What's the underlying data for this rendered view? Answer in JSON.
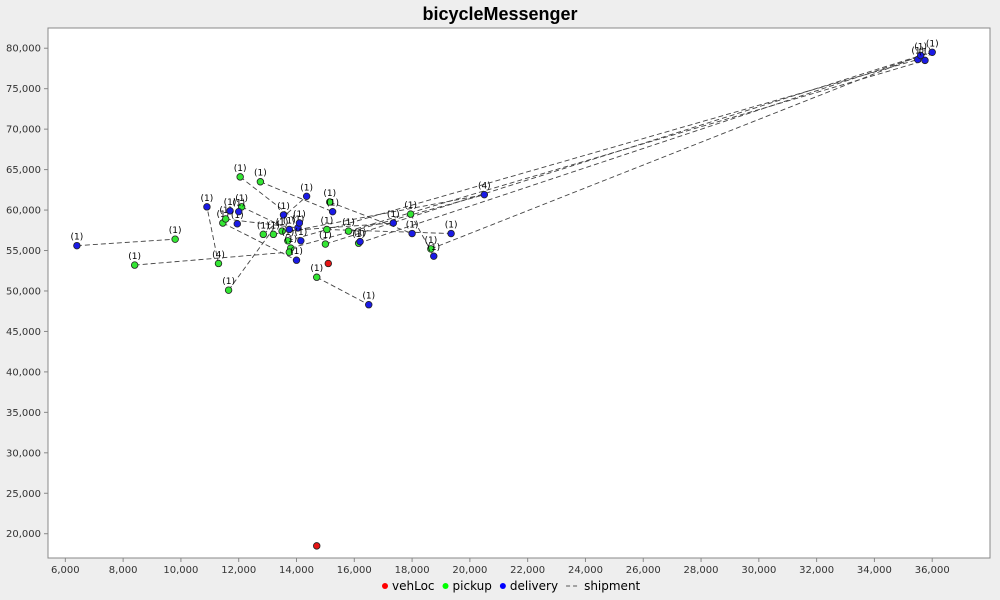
{
  "chart_data": {
    "type": "scatter",
    "title": "bicycleMessenger",
    "xlabel": "",
    "ylabel": "",
    "xlim": [
      5400,
      38000
    ],
    "ylim": [
      17000,
      82500
    ],
    "x_ticks": [
      "6,000",
      "8,000",
      "10,000",
      "12,000",
      "14,000",
      "16,000",
      "18,000",
      "20,000",
      "22,000",
      "24,000",
      "26,000",
      "28,000",
      "30,000",
      "32,000",
      "34,000",
      "36,000"
    ],
    "x_tick_values": [
      6000,
      8000,
      10000,
      12000,
      14000,
      16000,
      18000,
      20000,
      22000,
      24000,
      26000,
      28000,
      30000,
      32000,
      34000,
      36000
    ],
    "y_ticks": [
      "20,000",
      "25,000",
      "30,000",
      "35,000",
      "40,000",
      "45,000",
      "50,000",
      "55,000",
      "60,000",
      "65,000",
      "70,000",
      "75,000",
      "80,000"
    ],
    "y_tick_values": [
      20000,
      25000,
      30000,
      35000,
      40000,
      45000,
      50000,
      55000,
      60000,
      65000,
      70000,
      75000,
      80000
    ],
    "grid": false,
    "legend_position": "bottom",
    "legend": [
      {
        "name": "vehLoc",
        "color": "#ff0000",
        "kind": "marker"
      },
      {
        "name": "pickup",
        "color": "#00ff00",
        "kind": "marker"
      },
      {
        "name": "delivery",
        "color": "#0000ff",
        "kind": "marker"
      },
      {
        "name": "shipment",
        "color": "#555555",
        "kind": "dash"
      }
    ],
    "series": [
      {
        "name": "vehLoc",
        "color": "#e61414",
        "points": [
          {
            "x": 14700,
            "y": 18500,
            "label": ""
          },
          {
            "x": 15100,
            "y": 53400,
            "label": ""
          }
        ]
      },
      {
        "name": "pickup",
        "color": "#33e633",
        "points": [
          {
            "x": 9800,
            "y": 56400,
            "label": "(1)"
          },
          {
            "x": 8400,
            "y": 53200,
            "label": "(1)"
          },
          {
            "x": 11300,
            "y": 53400,
            "label": "(4)"
          },
          {
            "x": 11650,
            "y": 50100,
            "label": "(1)"
          },
          {
            "x": 12050,
            "y": 64100,
            "label": "(1)"
          },
          {
            "x": 12750,
            "y": 63500,
            "label": "(1)"
          },
          {
            "x": 12100,
            "y": 60400,
            "label": "(1)"
          },
          {
            "x": 11450,
            "y": 58400,
            "label": "(1)"
          },
          {
            "x": 11550,
            "y": 58900,
            "label": "(1)"
          },
          {
            "x": 12850,
            "y": 57000,
            "label": "(1)"
          },
          {
            "x": 13200,
            "y": 57000,
            "label": "(1)"
          },
          {
            "x": 13500,
            "y": 57400,
            "label": "(1)"
          },
          {
            "x": 13700,
            "y": 56200,
            "label": "(1)"
          },
          {
            "x": 13800,
            "y": 55300,
            "label": "(1)"
          },
          {
            "x": 13750,
            "y": 54800,
            "label": ""
          },
          {
            "x": 15000,
            "y": 55800,
            "label": "(1)"
          },
          {
            "x": 15050,
            "y": 57600,
            "label": "(1)"
          },
          {
            "x": 15150,
            "y": 61000,
            "label": "(1)"
          },
          {
            "x": 15800,
            "y": 57400,
            "label": "(1)"
          },
          {
            "x": 16150,
            "y": 55900,
            "label": "(1)"
          },
          {
            "x": 17950,
            "y": 59500,
            "label": "(1)"
          },
          {
            "x": 18650,
            "y": 55200,
            "label": "(1)"
          },
          {
            "x": 14700,
            "y": 51700,
            "label": "(1)"
          }
        ]
      },
      {
        "name": "delivery",
        "color": "#1a1ae6",
        "points": [
          {
            "x": 6400,
            "y": 55600,
            "label": "(1)"
          },
          {
            "x": 10900,
            "y": 60400,
            "label": "(1)"
          },
          {
            "x": 11700,
            "y": 59900,
            "label": "(1)"
          },
          {
            "x": 11950,
            "y": 58300,
            "label": "(1)"
          },
          {
            "x": 12000,
            "y": 59800,
            "label": "(1)"
          },
          {
            "x": 13550,
            "y": 59400,
            "label": "(1)"
          },
          {
            "x": 13750,
            "y": 57600,
            "label": "(1)"
          },
          {
            "x": 14050,
            "y": 57800,
            "label": "(1)"
          },
          {
            "x": 14100,
            "y": 58400,
            "label": "(1)"
          },
          {
            "x": 14150,
            "y": 56200,
            "label": "(1)"
          },
          {
            "x": 14000,
            "y": 53800,
            "label": "(1)"
          },
          {
            "x": 14350,
            "y": 61700,
            "label": "(1)"
          },
          {
            "x": 15250,
            "y": 59800,
            "label": "(1)"
          },
          {
            "x": 16200,
            "y": 56100,
            "label": "(1)"
          },
          {
            "x": 16500,
            "y": 48300,
            "label": "(1)"
          },
          {
            "x": 17350,
            "y": 58400,
            "label": "(1)"
          },
          {
            "x": 18000,
            "y": 57100,
            "label": "(1)"
          },
          {
            "x": 18750,
            "y": 54300,
            "label": "(1)"
          },
          {
            "x": 19350,
            "y": 57100,
            "label": "(1)"
          },
          {
            "x": 20500,
            "y": 61900,
            "label": "(4)"
          },
          {
            "x": 35500,
            "y": 78600,
            "label": "(1)"
          },
          {
            "x": 35600,
            "y": 79100,
            "label": "(1)"
          },
          {
            "x": 35750,
            "y": 78500,
            "label": "(1)"
          },
          {
            "x": 36000,
            "y": 79500,
            "label": "(1)"
          }
        ]
      }
    ],
    "shipments": [
      [
        [
          6400,
          55600
        ],
        [
          9800,
          56400
        ]
      ],
      [
        [
          8400,
          53200
        ],
        [
          13750,
          54800
        ]
      ],
      [
        [
          11300,
          53400
        ],
        [
          10900,
          60400
        ]
      ],
      [
        [
          11650,
          50100
        ],
        [
          13550,
          59400
        ]
      ],
      [
        [
          12050,
          64100
        ],
        [
          14100,
          58400
        ]
      ],
      [
        [
          12750,
          63500
        ],
        [
          15250,
          59800
        ]
      ],
      [
        [
          12100,
          60400
        ],
        [
          13750,
          57600
        ]
      ],
      [
        [
          11450,
          58400
        ],
        [
          14000,
          53800
        ]
      ],
      [
        [
          11550,
          58900
        ],
        [
          14050,
          57800
        ]
      ],
      [
        [
          12850,
          57000
        ],
        [
          14350,
          61700
        ]
      ],
      [
        [
          13500,
          57400
        ],
        [
          17350,
          58400
        ]
      ],
      [
        [
          14700,
          51700
        ],
        [
          16500,
          48300
        ]
      ],
      [
        [
          15050,
          57600
        ],
        [
          19350,
          57100
        ]
      ],
      [
        [
          15150,
          61000
        ],
        [
          18000,
          57100
        ]
      ],
      [
        [
          17950,
          59500
        ],
        [
          18750,
          54300
        ]
      ],
      [
        [
          13700,
          56200
        ],
        [
          35500,
          78600
        ]
      ],
      [
        [
          15000,
          55800
        ],
        [
          35600,
          79100
        ]
      ],
      [
        [
          15800,
          57400
        ],
        [
          35750,
          78500
        ]
      ],
      [
        [
          16150,
          55900
        ],
        [
          36000,
          79500
        ]
      ],
      [
        [
          18650,
          55200
        ],
        [
          35600,
          79100
        ]
      ],
      [
        [
          13200,
          57000
        ],
        [
          20500,
          61900
        ]
      ],
      [
        [
          13800,
          55300
        ],
        [
          20500,
          61900
        ]
      ]
    ]
  }
}
